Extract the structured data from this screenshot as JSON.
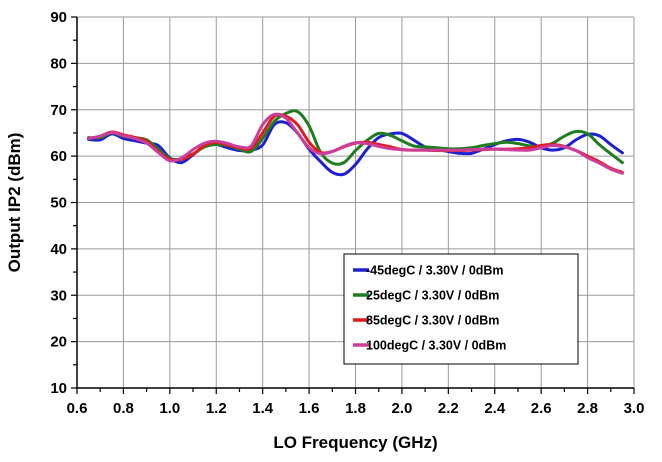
{
  "chart_data": {
    "type": "line",
    "title": "",
    "xlabel": "LO Frequency (GHz)",
    "ylabel": "Output IP2 (dBm)",
    "xlim": [
      0.6,
      3.0
    ],
    "ylim": [
      10,
      90
    ],
    "xticks": [
      0.6,
      0.8,
      1.0,
      1.2,
      1.4,
      1.6,
      1.8,
      2.0,
      2.2,
      2.4,
      2.6,
      2.8,
      3.0
    ],
    "yticks": [
      10,
      20,
      30,
      40,
      50,
      60,
      70,
      80,
      90
    ],
    "xtick_labels": [
      "0.6",
      "0.8",
      "1.0",
      "1.2",
      "1.4",
      "1.6",
      "1.8",
      "2.0",
      "2.2",
      "2.4",
      "2.6",
      "2.8",
      "3.0"
    ],
    "ytick_labels": [
      "10",
      "20",
      "30",
      "40",
      "50",
      "60",
      "70",
      "80",
      "90"
    ],
    "grid": true,
    "legend_position": "bottom-right",
    "x": [
      0.65,
      0.7,
      0.75,
      0.8,
      0.85,
      0.9,
      0.95,
      1.0,
      1.05,
      1.1,
      1.15,
      1.2,
      1.25,
      1.3,
      1.35,
      1.4,
      1.45,
      1.5,
      1.55,
      1.6,
      1.65,
      1.7,
      1.75,
      1.8,
      1.85,
      1.9,
      1.95,
      2.0,
      2.05,
      2.1,
      2.15,
      2.2,
      2.25,
      2.3,
      2.35,
      2.4,
      2.45,
      2.5,
      2.55,
      2.6,
      2.65,
      2.7,
      2.75,
      2.8,
      2.85,
      2.9,
      2.95
    ],
    "series": [
      {
        "name": "-45degC /  3.30V /  0dBm",
        "color": "#1f1fd0",
        "values": [
          63.6,
          63.5,
          64.8,
          63.8,
          63.3,
          62.8,
          62.3,
          59.6,
          58.6,
          60.3,
          62.2,
          62.5,
          61.8,
          61.2,
          61.3,
          62.4,
          66.8,
          67.2,
          65.0,
          61.5,
          58.8,
          56.5,
          56.1,
          58.2,
          61.5,
          64.0,
          64.8,
          64.9,
          63.5,
          62.0,
          61.5,
          61.0,
          60.6,
          60.6,
          61.5,
          62.5,
          63.3,
          63.6,
          63.0,
          61.8,
          61.3,
          61.8,
          63.5,
          64.7,
          64.4,
          62.5,
          60.7
        ]
      },
      {
        "name": "25degC /  3.30V /  0dBm",
        "color": "#1e7d1e",
        "values": [
          64.0,
          64.0,
          65.0,
          64.3,
          64.0,
          63.5,
          61.5,
          59.5,
          59.4,
          60.5,
          62.0,
          62.5,
          62.3,
          61.5,
          61.0,
          63.8,
          67.5,
          69.2,
          69.6,
          66.5,
          60.8,
          58.5,
          58.6,
          61.2,
          63.4,
          64.9,
          64.5,
          63.3,
          62.2,
          62.0,
          61.8,
          61.6,
          61.6,
          61.8,
          62.3,
          62.7,
          63.0,
          62.7,
          62.2,
          62.0,
          62.8,
          64.3,
          65.3,
          64.8,
          62.5,
          60.5,
          58.6
        ]
      },
      {
        "name": "85degC /  3.30V /  0dBm",
        "color": "#e01b1b",
        "values": [
          63.8,
          64.3,
          65.2,
          64.6,
          64.0,
          63.2,
          61.0,
          59.3,
          59.3,
          60.4,
          62.3,
          63.0,
          62.4,
          61.8,
          61.7,
          65.0,
          68.6,
          68.6,
          66.8,
          63.0,
          60.8,
          61.0,
          62.0,
          62.8,
          63.0,
          62.5,
          62.0,
          61.4,
          61.3,
          61.3,
          61.2,
          61.2,
          61.2,
          61.3,
          61.4,
          61.5,
          61.5,
          61.6,
          61.8,
          62.3,
          62.5,
          62.1,
          61.2,
          60.0,
          58.8,
          57.4,
          56.5
        ]
      },
      {
        "name": "100degC /  3.30V /  0dBm",
        "color": "#cc3d9c",
        "values": [
          63.8,
          64.3,
          65.1,
          64.4,
          63.8,
          62.8,
          60.8,
          59.0,
          59.6,
          61.4,
          62.8,
          63.2,
          62.7,
          62.0,
          62.2,
          66.8,
          69.0,
          68.2,
          65.0,
          61.8,
          60.5,
          61.0,
          62.1,
          62.9,
          62.7,
          62.1,
          61.6,
          61.4,
          61.3,
          61.3,
          61.3,
          61.3,
          61.3,
          61.4,
          61.5,
          61.5,
          61.4,
          61.3,
          61.3,
          61.8,
          62.3,
          62.0,
          61.2,
          59.7,
          58.5,
          57.2,
          56.3
        ]
      }
    ]
  }
}
